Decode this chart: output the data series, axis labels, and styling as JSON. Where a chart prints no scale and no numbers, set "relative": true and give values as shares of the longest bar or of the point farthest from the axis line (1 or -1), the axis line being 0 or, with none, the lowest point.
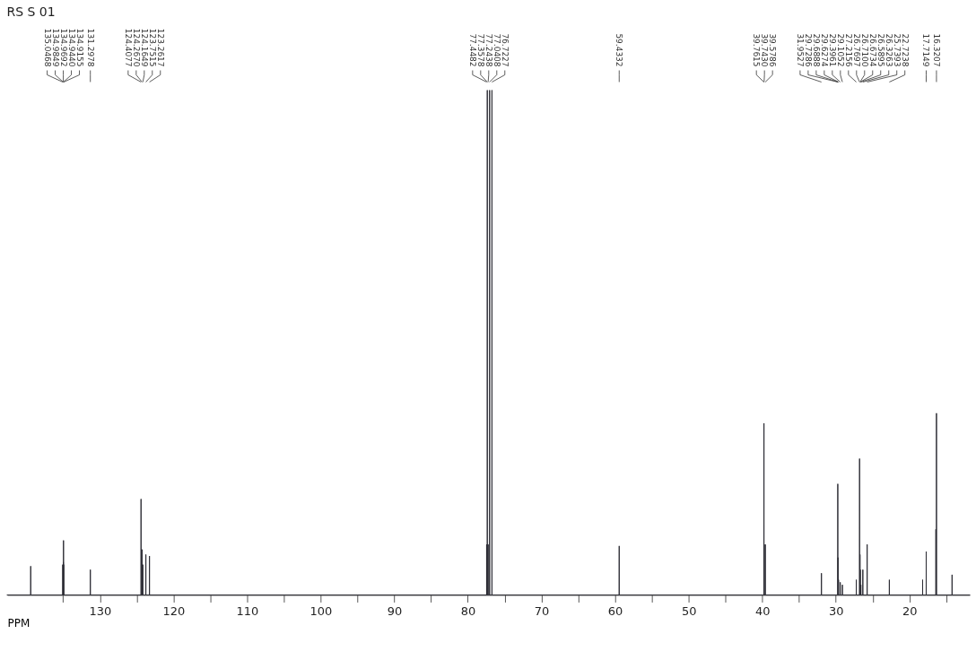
{
  "chart_data": {
    "type": "line",
    "title": "RS S 01",
    "xlabel": "PPM",
    "relative": true,
    "grid": false,
    "line_style": "solid",
    "marker": "none",
    "xlim": [
      142.6,
      11.8
    ],
    "xticks": [
      {
        "value": 135,
        "label": null
      },
      130,
      {
        "value": 125,
        "label": null
      },
      120,
      {
        "value": 115,
        "label": null
      },
      110,
      {
        "value": 105,
        "label": null
      },
      100,
      {
        "value": 95,
        "label": null
      },
      90,
      {
        "value": 85,
        "label": null
      },
      80,
      {
        "value": 75,
        "label": null
      },
      70,
      {
        "value": 65,
        "label": null
      },
      60,
      {
        "value": 55,
        "label": null
      },
      50,
      {
        "value": 45,
        "label": null
      },
      40,
      {
        "value": 35,
        "label": null
      },
      30,
      {
        "value": 25,
        "label": null
      },
      20,
      {
        "value": 15,
        "label": null
      }
    ],
    "tick_labels": "x",
    "series": [
      {
        "color": "#2b2b33",
        "x": [
          142.6,
          139.405,
          139.4,
          139.395,
          135.0518,
          135.0468,
          135.0418,
          134.9899,
          134.9849,
          134.9799,
          134.9742,
          134.9692,
          134.9642,
          134.949,
          134.944,
          134.939,
          134.9205,
          134.9155,
          134.9105,
          131.3028,
          131.2978,
          131.2928,
          124.4127,
          124.4077,
          124.4027,
          124.272,
          124.267,
          124.262,
          124.1699,
          124.1649,
          124.1599,
          123.7565,
          123.7515,
          123.7465,
          123.2667,
          123.2617,
          123.2567,
          77.4532,
          77.4482,
          77.4432,
          77.3628,
          77.3578,
          77.3528,
          77.2488,
          77.2438,
          77.2388,
          77.0458,
          77.0408,
          77.0358,
          76.7277,
          76.7227,
          76.7177,
          59.4382,
          59.4332,
          59.4282,
          39.7665,
          39.7615,
          39.7565,
          39.748,
          39.743,
          39.738,
          39.5836,
          39.5786,
          39.5736,
          31.9577,
          31.9527,
          31.9477,
          29.7336,
          29.7286,
          29.7236,
          29.6938,
          29.6888,
          29.6838,
          29.6324,
          29.6274,
          29.6224,
          29.4011,
          29.3961,
          29.3911,
          29.1102,
          29.1052,
          29.1002,
          27.2206,
          27.2156,
          27.2106,
          26.7747,
          26.7697,
          26.7647,
          26.715,
          26.71,
          26.705,
          26.6784,
          26.6734,
          26.6684,
          26.5945,
          26.5895,
          26.5845,
          26.3313,
          26.3263,
          26.3213,
          25.7443,
          25.7393,
          25.7343,
          22.7288,
          22.7238,
          22.7188,
          18.205,
          18.2,
          18.195,
          17.7199,
          17.7149,
          17.7099,
          16.405,
          16.4,
          16.395,
          16.3257,
          16.3207,
          16.3157,
          14.205,
          14.2,
          14.195,
          11.8
        ],
        "values": [
          0,
          0,
          0.057,
          0,
          0,
          0.06,
          0,
          0,
          0.06,
          0,
          0,
          0.065,
          0,
          0,
          0.108,
          0,
          0,
          0.06,
          0,
          0,
          0.05,
          0,
          0,
          0.19,
          0,
          0,
          0.09,
          0,
          0,
          0.06,
          0,
          0,
          0.08,
          0,
          0,
          0.077,
          0,
          0,
          0.1,
          0,
          0,
          1,
          0,
          0,
          0.1,
          0,
          0,
          1,
          0,
          0,
          1,
          0,
          0,
          0.097,
          0,
          0,
          0.34,
          0,
          0,
          0.1,
          0,
          0,
          0.1,
          0,
          0,
          0.043,
          0,
          0,
          0.22,
          0,
          0,
          0.074,
          0,
          0,
          0.03,
          0,
          0,
          0.025,
          0,
          0,
          0.02,
          0,
          0,
          0.03,
          0,
          0,
          0.27,
          0,
          0,
          0.08,
          0,
          0,
          0.05,
          0,
          0,
          0.02,
          0,
          0,
          0.05,
          0,
          0,
          0.1,
          0,
          0,
          0.03,
          0,
          0,
          0.03,
          0,
          0,
          0.086,
          0,
          0,
          0.13,
          0,
          0,
          0.36,
          0,
          0,
          0.04,
          0,
          0
        ]
      }
    ],
    "annotations": [
      {
        "text": "135.0468",
        "x": 135.0468
      },
      {
        "text": "134.9849",
        "x": 134.9849
      },
      {
        "text": "134.9692",
        "x": 134.9692
      },
      {
        "text": "134.9440",
        "x": 134.944
      },
      {
        "text": "134.9155",
        "x": 134.9155
      },
      {
        "text": "131.2978",
        "x": 131.2978
      },
      {
        "text": "124.4077",
        "x": 124.4077
      },
      {
        "text": "124.2670",
        "x": 124.267
      },
      {
        "text": "124.1649",
        "x": 124.1649
      },
      {
        "text": "123.7515",
        "x": 123.7515
      },
      {
        "text": "123.2617",
        "x": 123.2617
      },
      {
        "text": "77.4482",
        "x": 77.4482
      },
      {
        "text": "77.3578",
        "x": 77.3578
      },
      {
        "text": "77.2438",
        "x": 77.2438
      },
      {
        "text": "77.0408",
        "x": 77.0408
      },
      {
        "text": "76.7227",
        "x": 76.7227
      },
      {
        "text": "59.4332",
        "x": 59.4332
      },
      {
        "text": "39.7615",
        "x": 39.7615
      },
      {
        "text": "39.7430",
        "x": 39.743
      },
      {
        "text": "39.5786",
        "x": 39.5786
      },
      {
        "text": "31.9527",
        "x": 31.9527
      },
      {
        "text": "29.7286",
        "x": 29.7286
      },
      {
        "text": "29.6888",
        "x": 29.6888
      },
      {
        "text": "29.6274",
        "x": 29.6274
      },
      {
        "text": "29.3961",
        "x": 29.3961
      },
      {
        "text": "29.1052",
        "x": 29.1052
      },
      {
        "text": "27.2156",
        "x": 27.2156
      },
      {
        "text": "26.7697",
        "x": 26.7697
      },
      {
        "text": "26.7100",
        "x": 26.71
      },
      {
        "text": "26.6734",
        "x": 26.6734
      },
      {
        "text": "26.5895",
        "x": 26.5895
      },
      {
        "text": "26.3263",
        "x": 26.3263
      },
      {
        "text": "25.7393",
        "x": 25.7393
      },
      {
        "text": "22.7238",
        "x": 22.7238
      },
      {
        "text": "17.7149",
        "x": 17.7149
      },
      {
        "text": "16.3207",
        "x": 16.3207
      }
    ]
  }
}
